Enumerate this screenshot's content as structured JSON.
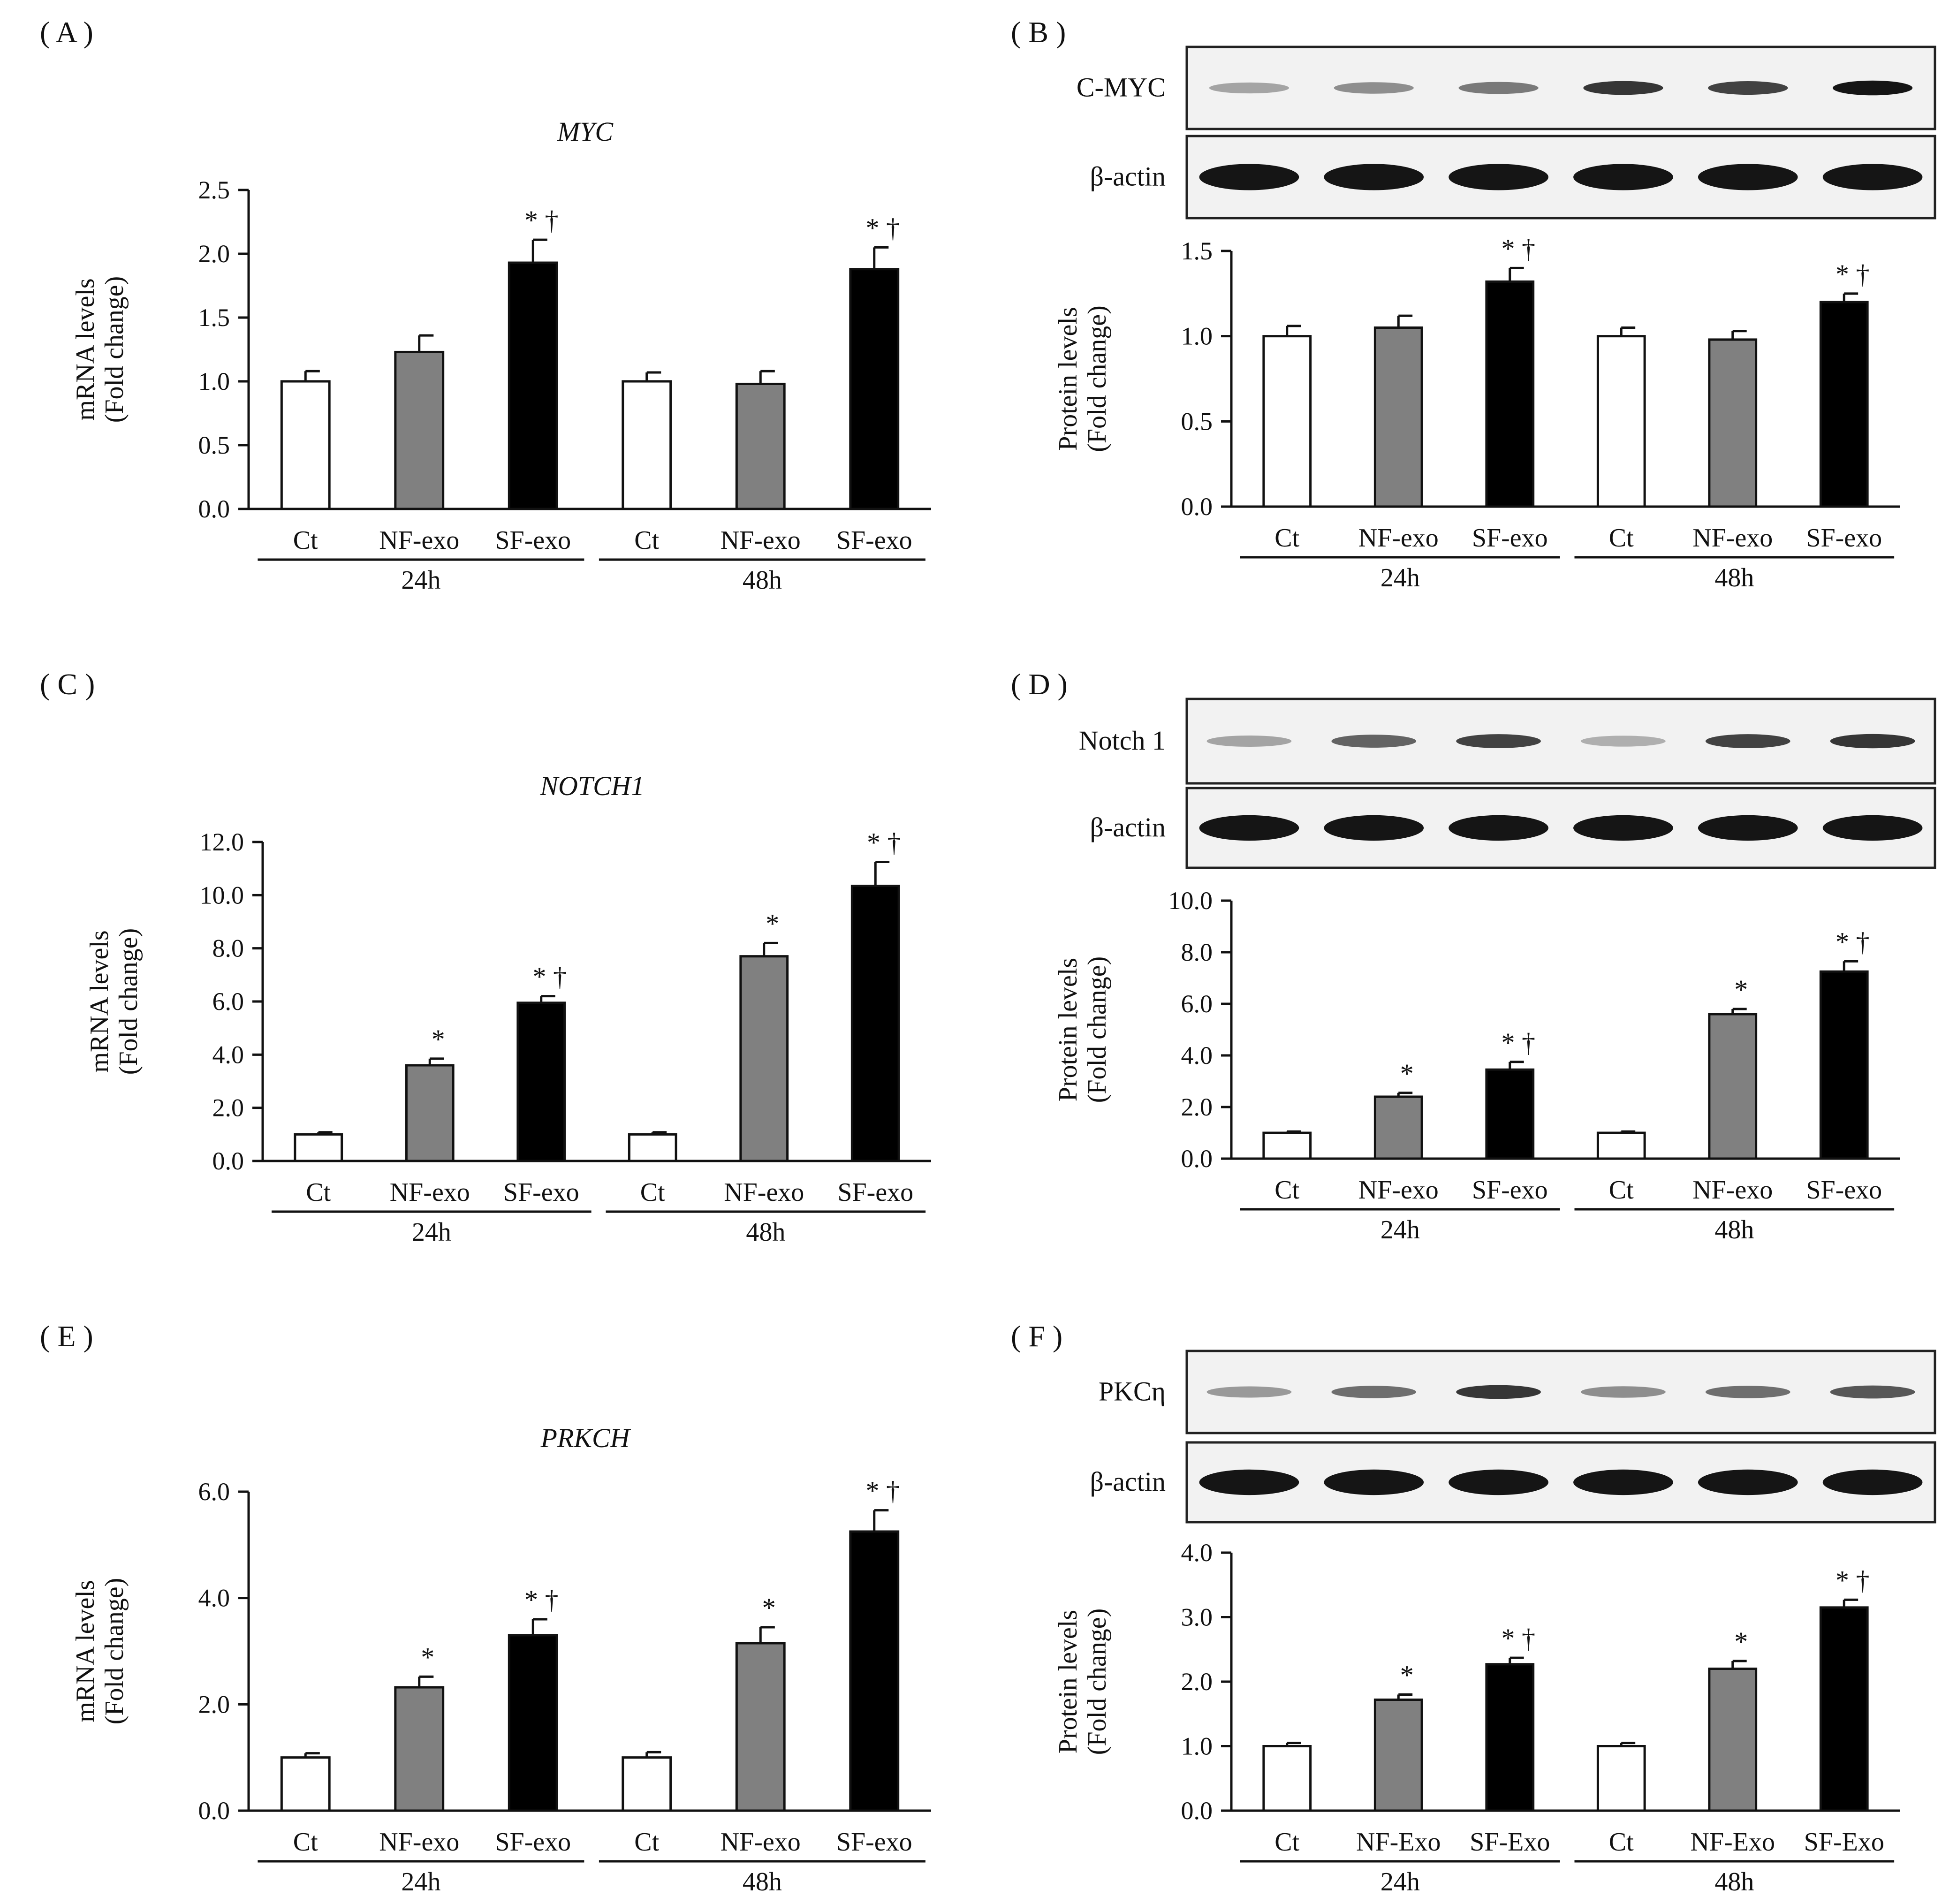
{
  "colors": {
    "Ct": "#ffffff",
    "NF": "#808080",
    "SF": "#000000",
    "axis": "#111111",
    "blot_bg": "#f2f2f2",
    "band": "#151515"
  },
  "panels": [
    {
      "id": "A",
      "label": "( A )",
      "title": "MYC",
      "ylabel": [
        "mRNA levels",
        "(Fold change)"
      ],
      "blots": [],
      "chart_data": {
        "type": "bar",
        "title": "MYC",
        "xlabel": "",
        "ylabel": "mRNA levels (Fold change)",
        "ylim": [
          0,
          2.5
        ],
        "ticks": [
          "0.0",
          "0.5",
          "1.0",
          "1.5",
          "2.0",
          "2.5"
        ],
        "categories": [
          "Ct",
          "NF-exo",
          "SF-exo",
          "Ct",
          "NF-exo",
          "SF-exo"
        ],
        "groups": [
          {
            "name": "24h",
            "span": [
              0,
              2
            ]
          },
          {
            "name": "48h",
            "span": [
              3,
              5
            ]
          }
        ],
        "values": [
          1.0,
          1.23,
          1.93,
          1.0,
          0.98,
          1.88
        ],
        "errors": [
          0.08,
          0.13,
          0.18,
          0.07,
          0.1,
          0.17
        ],
        "fills": [
          "Ct",
          "NF",
          "SF",
          "Ct",
          "NF",
          "SF"
        ],
        "annotations": [
          "",
          "",
          "* †",
          "",
          "",
          "* †"
        ]
      }
    },
    {
      "id": "B",
      "label": "( B )",
      "title": "",
      "ylabel": [
        "Protein levels",
        "(Fold change)"
      ],
      "blots": [
        {
          "label": "C-MYC",
          "intensity": [
            0.35,
            0.45,
            0.55,
            0.85,
            0.8,
            1.0
          ],
          "width": 0.8
        },
        {
          "label": "β-actin",
          "intensity": [
            1,
            1,
            1,
            1,
            1,
            1
          ],
          "width": 1.0
        }
      ],
      "chart_data": {
        "type": "bar",
        "title": "",
        "xlabel": "",
        "ylabel": "Protein levels (Fold change)",
        "ylim": [
          0,
          1.5
        ],
        "ticks": [
          "0.0",
          "0.5",
          "1.0",
          "1.5"
        ],
        "categories": [
          "Ct",
          "NF-exo",
          "SF-exo",
          "Ct",
          "NF-exo",
          "SF-exo"
        ],
        "groups": [
          {
            "name": "24h",
            "span": [
              0,
              2
            ]
          },
          {
            "name": "48h",
            "span": [
              3,
              5
            ]
          }
        ],
        "values": [
          1.0,
          1.05,
          1.32,
          1.0,
          0.98,
          1.2
        ],
        "errors": [
          0.06,
          0.07,
          0.08,
          0.05,
          0.05,
          0.05
        ],
        "fills": [
          "Ct",
          "NF",
          "SF",
          "Ct",
          "NF",
          "SF"
        ],
        "annotations": [
          "",
          "",
          "* †",
          "",
          "",
          "* †"
        ]
      }
    },
    {
      "id": "C",
      "label": "( C )",
      "title": "NOTCH1",
      "ylabel": [
        "mRNA levels",
        "(Fold change)"
      ],
      "blots": [],
      "chart_data": {
        "type": "bar",
        "title": "NOTCH1",
        "xlabel": "",
        "ylabel": "mRNA levels (Fold change)",
        "ylim": [
          0,
          12
        ],
        "ticks": [
          "0.0",
          "2.0",
          "4.0",
          "6.0",
          "8.0",
          "10.0",
          "12.0"
        ],
        "categories": [
          "Ct",
          "NF-exo",
          "SF-exo",
          "Ct",
          "NF-exo",
          "SF-exo"
        ],
        "groups": [
          {
            "name": "24h",
            "span": [
              0,
              2
            ]
          },
          {
            "name": "48h",
            "span": [
              3,
              5
            ]
          }
        ],
        "values": [
          1.0,
          3.6,
          5.95,
          1.0,
          7.7,
          10.35
        ],
        "errors": [
          0.08,
          0.25,
          0.25,
          0.08,
          0.5,
          0.9
        ],
        "fills": [
          "Ct",
          "NF",
          "SF",
          "Ct",
          "NF",
          "SF"
        ],
        "annotations": [
          "",
          "*",
          "* †",
          "",
          "*",
          "* †"
        ]
      }
    },
    {
      "id": "D",
      "label": "( D )",
      "title": "",
      "ylabel": [
        "Protein levels",
        "(Fold change)"
      ],
      "blots": [
        {
          "label": "Notch 1",
          "intensity": [
            0.35,
            0.65,
            0.8,
            0.3,
            0.8,
            0.85
          ],
          "width": 0.85
        },
        {
          "label": "β-actin",
          "intensity": [
            1,
            1,
            1,
            1,
            1,
            1
          ],
          "width": 1.0
        }
      ],
      "chart_data": {
        "type": "bar",
        "title": "",
        "xlabel": "",
        "ylabel": "Protein levels (Fold change)",
        "ylim": [
          0,
          10
        ],
        "ticks": [
          "0.0",
          "2.0",
          "4.0",
          "6.0",
          "8.0",
          "10.0"
        ],
        "categories": [
          "Ct",
          "NF-exo",
          "SF-exo",
          "Ct",
          "NF-exo",
          "SF-exo"
        ],
        "groups": [
          {
            "name": "24h",
            "span": [
              0,
              2
            ]
          },
          {
            "name": "48h",
            "span": [
              3,
              5
            ]
          }
        ],
        "values": [
          1.0,
          2.4,
          3.45,
          1.0,
          5.6,
          7.25
        ],
        "errors": [
          0.05,
          0.15,
          0.3,
          0.05,
          0.2,
          0.4
        ],
        "fills": [
          "Ct",
          "NF",
          "SF",
          "Ct",
          "NF",
          "SF"
        ],
        "annotations": [
          "",
          "*",
          "* †",
          "",
          "*",
          "* †"
        ]
      }
    },
    {
      "id": "E",
      "label": "( E )",
      "title": "PRKCH",
      "ylabel": [
        "mRNA levels",
        "(Fold change)"
      ],
      "blots": [],
      "chart_data": {
        "type": "bar",
        "title": "PRKCH",
        "xlabel": "",
        "ylabel": "mRNA levels (Fold change)",
        "ylim": [
          0,
          6
        ],
        "ticks": [
          "0.0",
          "2.0",
          "4.0",
          "6.0"
        ],
        "categories": [
          "Ct",
          "NF-exo",
          "SF-exo",
          "Ct",
          "NF-exo",
          "SF-exo"
        ],
        "groups": [
          {
            "name": "24h",
            "span": [
              0,
              2
            ]
          },
          {
            "name": "48h",
            "span": [
              3,
              5
            ]
          }
        ],
        "values": [
          1.0,
          2.32,
          3.3,
          1.0,
          3.15,
          5.25
        ],
        "errors": [
          0.08,
          0.2,
          0.3,
          0.1,
          0.3,
          0.4
        ],
        "fills": [
          "Ct",
          "NF",
          "SF",
          "Ct",
          "NF",
          "SF"
        ],
        "annotations": [
          "",
          "*",
          "* †",
          "",
          "*",
          "* †"
        ]
      }
    },
    {
      "id": "F",
      "label": "( F )",
      "title": "",
      "ylabel": [
        "Protein levels",
        "(Fold change)"
      ],
      "blots": [
        {
          "label": "PKCη",
          "intensity": [
            0.4,
            0.6,
            0.85,
            0.45,
            0.6,
            0.7
          ],
          "width": 0.85
        },
        {
          "label": "β-actin",
          "intensity": [
            1,
            1,
            1,
            1,
            1,
            1
          ],
          "width": 1.0
        }
      ],
      "chart_data": {
        "type": "bar",
        "title": "",
        "xlabel": "",
        "ylabel": "Protein levels (Fold change)",
        "ylim": [
          0,
          4
        ],
        "ticks": [
          "0.0",
          "1.0",
          "2.0",
          "3.0",
          "4.0"
        ],
        "categories": [
          "Ct",
          "NF-Exo",
          "SF-Exo",
          "Ct",
          "NF-Exo",
          "SF-Exo"
        ],
        "groups": [
          {
            "name": "24h",
            "span": [
              0,
              2
            ]
          },
          {
            "name": "48h",
            "span": [
              3,
              5
            ]
          }
        ],
        "values": [
          1.0,
          1.72,
          2.27,
          1.0,
          2.2,
          3.15
        ],
        "errors": [
          0.05,
          0.08,
          0.1,
          0.05,
          0.12,
          0.12
        ],
        "fills": [
          "Ct",
          "NF",
          "SF",
          "Ct",
          "NF",
          "SF"
        ],
        "annotations": [
          "",
          "*",
          "* †",
          "",
          "*",
          "* †"
        ]
      }
    }
  ]
}
